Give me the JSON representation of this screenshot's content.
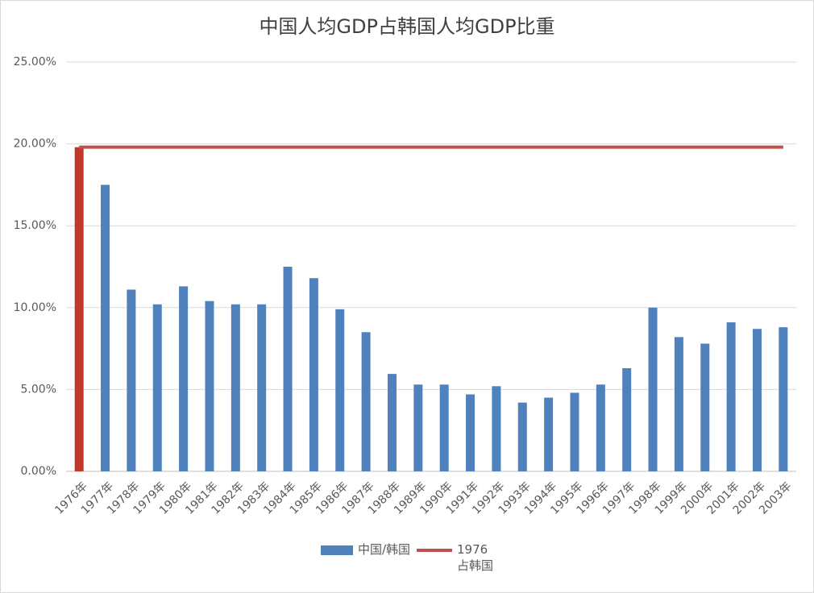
{
  "chart_data": {
    "type": "bar_line",
    "title": "中国人均GDP占韩国人均GDP比重",
    "categories": [
      "1976年",
      "1977年",
      "1978年",
      "1979年",
      "1980年",
      "1981年",
      "1982年",
      "1983年",
      "1984年",
      "1985年",
      "1986年",
      "1987年",
      "1988年",
      "1989年",
      "1990年",
      "1991年",
      "1992年",
      "1993年",
      "1994年",
      "1995年",
      "1996年",
      "1997年",
      "1998年",
      "1999年",
      "2000年",
      "2001年",
      "2002年",
      "2003年"
    ],
    "series": [
      {
        "name": "中国/韩国",
        "type": "bar",
        "color": "#4f81bd",
        "point_colors": [
          "#c0392b",
          "#4f81bd",
          "#4f81bd",
          "#4f81bd",
          "#4f81bd",
          "#4f81bd",
          "#4f81bd",
          "#4f81bd",
          "#4f81bd",
          "#4f81bd",
          "#4f81bd",
          "#4f81bd",
          "#4f81bd",
          "#4f81bd",
          "#4f81bd",
          "#4f81bd",
          "#4f81bd",
          "#4f81bd",
          "#4f81bd",
          "#4f81bd",
          "#4f81bd",
          "#4f81bd",
          "#4f81bd",
          "#4f81bd",
          "#4f81bd",
          "#4f81bd",
          "#4f81bd",
          "#4f81bd"
        ],
        "values": [
          19.8,
          17.5,
          11.1,
          10.2,
          11.3,
          10.4,
          10.2,
          10.2,
          12.5,
          11.8,
          9.9,
          8.5,
          5.95,
          5.3,
          5.3,
          4.7,
          5.2,
          4.2,
          4.5,
          4.8,
          5.3,
          6.3,
          10.0,
          8.2,
          7.8,
          9.1,
          8.7,
          8.8
        ]
      },
      {
        "name": "1976\n占韩国",
        "type": "line",
        "color": "#c0504d",
        "values": [
          19.8,
          19.8,
          19.8,
          19.8,
          19.8,
          19.8,
          19.8,
          19.8,
          19.8,
          19.8,
          19.8,
          19.8,
          19.8,
          19.8,
          19.8,
          19.8,
          19.8,
          19.8,
          19.8,
          19.8,
          19.8,
          19.8,
          19.8,
          19.8,
          19.8,
          19.8,
          19.8,
          19.8
        ]
      }
    ],
    "ylim": [
      0,
      25
    ],
    "yticks": [
      {
        "value": 0,
        "label": "0.00%"
      },
      {
        "value": 5,
        "label": "5.00%"
      },
      {
        "value": 10,
        "label": "10.00%"
      },
      {
        "value": 15,
        "label": "15.00%"
      },
      {
        "value": 20,
        "label": "20.00%"
      },
      {
        "value": 25,
        "label": "25.00%"
      }
    ],
    "grid": true,
    "legend": "bottom"
  }
}
